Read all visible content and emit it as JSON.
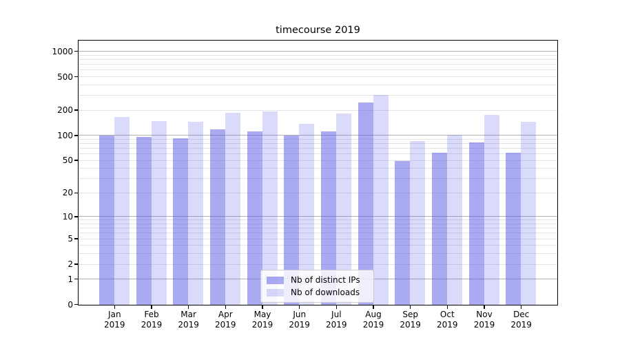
{
  "chart_data": {
    "type": "bar",
    "title": "timecourse 2019",
    "categories": [
      "Jan",
      "Feb",
      "Mar",
      "Apr",
      "May",
      "Jun",
      "Jul",
      "Aug",
      "Sep",
      "Oct",
      "Nov",
      "Dec"
    ],
    "category_year": "2019",
    "series": [
      {
        "name": "Nb of distinct IPs",
        "values": [
          100,
          96,
          93,
          119,
          112,
          100,
          112,
          251,
          50,
          62,
          83,
          63
        ]
      },
      {
        "name": "Nb of downloads",
        "values": [
          167,
          149,
          146,
          188,
          194,
          138,
          183,
          304,
          87,
          102,
          179,
          147
        ]
      }
    ],
    "xlabel": "",
    "ylabel": "",
    "yscale": "log1p",
    "yticks": [
      0,
      1,
      2,
      5,
      10,
      20,
      50,
      100,
      200,
      500,
      1000
    ],
    "ylim": [
      0,
      1330
    ],
    "grid": true,
    "legend_position": "lower center"
  },
  "colors": {
    "bar_fill_base": "#5555e6",
    "bar_alpha_distinct_ips": 0.5,
    "bar_alpha_downloads": 0.22,
    "grid_major": "#b0b0b0",
    "grid_minor": "#e3e3e3",
    "axis_color": "#000000",
    "text_color": "#000000",
    "legend_border": "#cccccc"
  }
}
